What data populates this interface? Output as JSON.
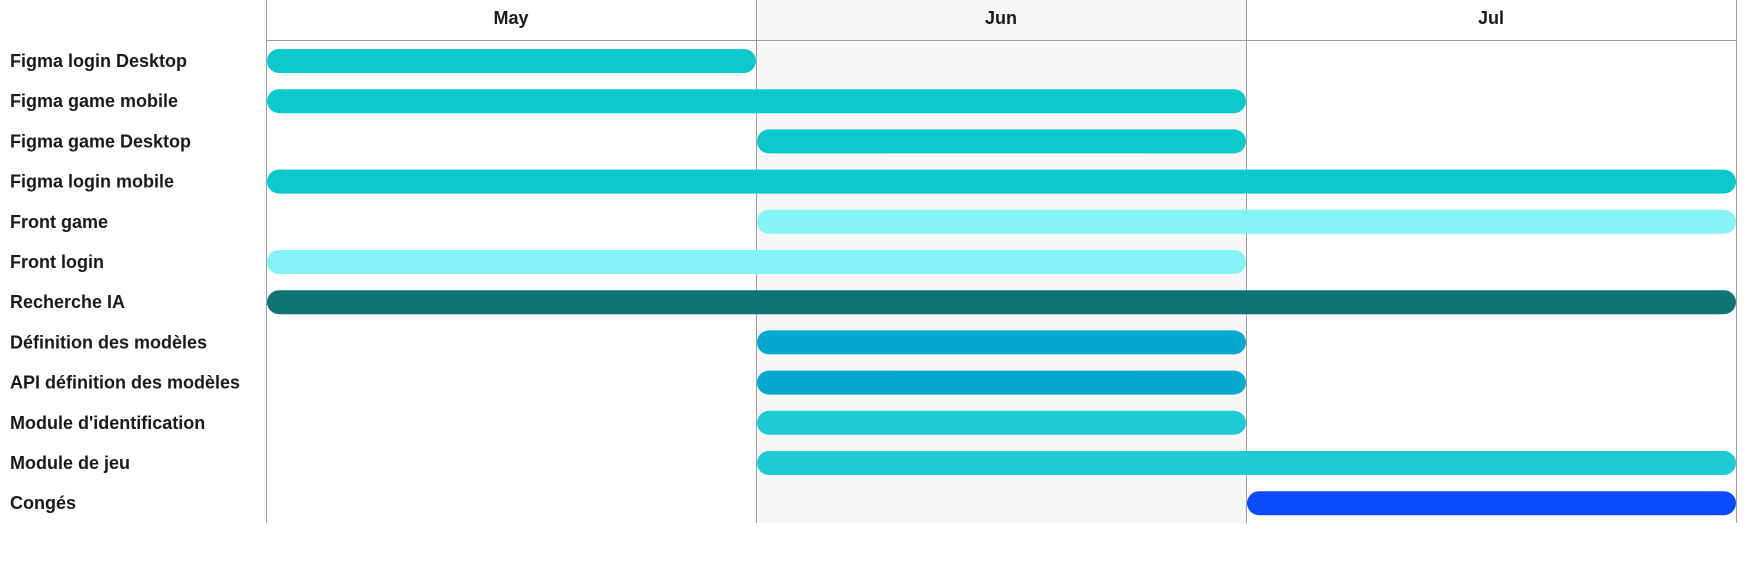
{
  "chart_data": {
    "type": "gantt",
    "title": "",
    "months": [
      "May",
      "Jun",
      "Jul"
    ],
    "shaded_month": "Jun",
    "shade_color": "#f7f7f7",
    "grid_color": "#9e9e9e",
    "tasks": [
      {
        "name": "Figma login Desktop",
        "start": "May",
        "end": "May",
        "color": "#0bc8cc"
      },
      {
        "name": "Figma game mobile",
        "start": "May",
        "end": "Jun",
        "color": "#0bc8cc"
      },
      {
        "name": "Figma game Desktop",
        "start": "Jun",
        "end": "Jun",
        "color": "#0bc8cc"
      },
      {
        "name": "Figma login mobile",
        "start": "May",
        "end": "Jul",
        "color": "#0bc8cc"
      },
      {
        "name": "Front game",
        "start": "Jun",
        "end": "Jul",
        "color": "#84f4f6"
      },
      {
        "name": "Front login",
        "start": "May",
        "end": "Jun",
        "color": "#84f4f6"
      },
      {
        "name": "Recherche IA",
        "start": "May",
        "end": "Jul",
        "color": "#0f7574"
      },
      {
        "name": "Définition des modèles",
        "start": "Jun",
        "end": "Jun",
        "color": "#04a8d1"
      },
      {
        "name": "API définition des modèles",
        "start": "Jun",
        "end": "Jun",
        "color": "#04a8d1"
      },
      {
        "name": "Module d'identification",
        "start": "Jun",
        "end": "Jun",
        "color": "#1ecbd4"
      },
      {
        "name": "Module de jeu",
        "start": "Jun",
        "end": "Jul",
        "color": "#1ecbd4"
      },
      {
        "name": "Congés",
        "start": "Jul",
        "end": "Jul",
        "color": "#0a4bff"
      }
    ]
  }
}
